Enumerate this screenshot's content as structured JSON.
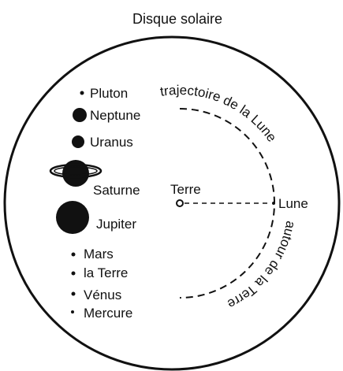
{
  "title": "Disque solaire",
  "planets": [
    {
      "label": "Pluton"
    },
    {
      "label": "Neptune"
    },
    {
      "label": "Uranus"
    },
    {
      "label": "Saturne"
    },
    {
      "label": "Jupiter"
    },
    {
      "label": "Mars"
    },
    {
      "label": "la Terre"
    },
    {
      "label": "Vénus"
    },
    {
      "label": "Mercure"
    }
  ],
  "earth_label": "Terre",
  "moon_label": "Lune",
  "trajectory": {
    "upper": "trajectoire de la Lune",
    "lower": "autour de la Terre"
  }
}
